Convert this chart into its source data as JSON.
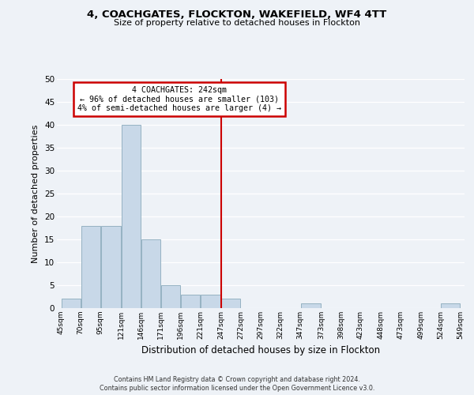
{
  "title": "4, COACHGATES, FLOCKTON, WAKEFIELD, WF4 4TT",
  "subtitle": "Size of property relative to detached houses in Flockton",
  "xlabel": "Distribution of detached houses by size in Flockton",
  "ylabel": "Number of detached properties",
  "bar_edges": [
    45,
    70,
    95,
    121,
    146,
    171,
    196,
    221,
    247,
    272,
    297,
    322,
    347,
    373,
    398,
    423,
    448,
    473,
    499,
    524,
    549
  ],
  "bar_heights": [
    2,
    18,
    18,
    40,
    15,
    5,
    3,
    3,
    2,
    0,
    0,
    0,
    1,
    0,
    0,
    0,
    0,
    0,
    0,
    1
  ],
  "bar_color": "#c8d8e8",
  "bar_edge_color": "#8aaabb",
  "vline_x": 247,
  "vline_color": "#cc0000",
  "annotation_title": "4 COACHGATES: 242sqm",
  "annotation_line1": "← 96% of detached houses are smaller (103)",
  "annotation_line2": "4% of semi-detached houses are larger (4) →",
  "annotation_box_color": "#ffffff",
  "annotation_box_edge": "#cc0000",
  "tick_labels": [
    "45sqm",
    "70sqm",
    "95sqm",
    "121sqm",
    "146sqm",
    "171sqm",
    "196sqm",
    "221sqm",
    "247sqm",
    "272sqm",
    "297sqm",
    "322sqm",
    "347sqm",
    "373sqm",
    "398sqm",
    "423sqm",
    "448sqm",
    "473sqm",
    "499sqm",
    "524sqm",
    "549sqm"
  ],
  "ylim": [
    0,
    50
  ],
  "yticks": [
    0,
    5,
    10,
    15,
    20,
    25,
    30,
    35,
    40,
    45,
    50
  ],
  "background_color": "#eef2f7",
  "grid_color": "#ffffff",
  "footer1": "Contains HM Land Registry data © Crown copyright and database right 2024.",
  "footer2": "Contains public sector information licensed under the Open Government Licence v3.0."
}
